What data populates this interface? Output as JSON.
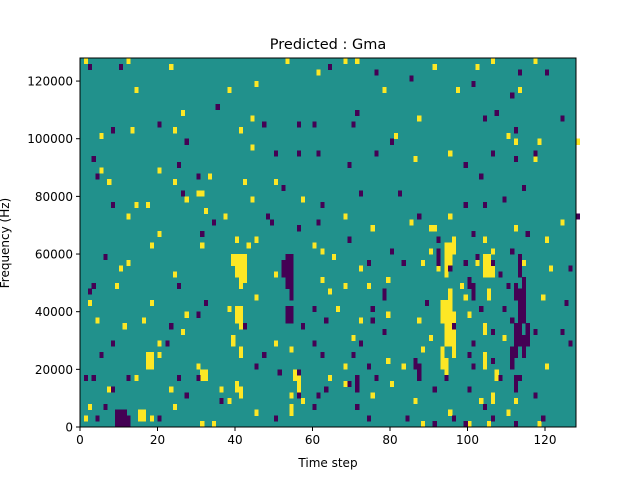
{
  "chart_data": {
    "type": "heatmap",
    "title": "Predicted : Gma",
    "xlabel": "Time step",
    "ylabel": "Frequency (Hz)",
    "xlim": [
      0,
      128
    ],
    "ylim": [
      0,
      128000
    ],
    "x_ticks": [
      0,
      20,
      40,
      60,
      80,
      100,
      120
    ],
    "y_ticks": [
      0,
      20000,
      40000,
      60000,
      80000,
      100000,
      120000
    ],
    "x_tick_labels": [
      "0",
      "20",
      "40",
      "60",
      "80",
      "100",
      "120"
    ],
    "y_tick_labels": [
      "0",
      "20000",
      "40000",
      "60000",
      "80000",
      "100000",
      "120000"
    ],
    "grid": false,
    "colormap": "viridis",
    "colors": {
      "background_mid": "#21918c",
      "high": "#fde725",
      "low": "#440154"
    },
    "n_freq_bins": 64,
    "bin_height_hz": 2000,
    "cells": {
      "high": [
        [
          1,
          63
        ],
        [
          12,
          63
        ],
        [
          53,
          63
        ],
        [
          68,
          63
        ],
        [
          71,
          63
        ],
        [
          106,
          63
        ],
        [
          117,
          63
        ],
        [
          91,
          62
        ],
        [
          102,
          62
        ],
        [
          23,
          62
        ],
        [
          61,
          61
        ],
        [
          45,
          59
        ],
        [
          14,
          58
        ],
        [
          38,
          58
        ],
        [
          78,
          58
        ],
        [
          97,
          58
        ],
        [
          113,
          58
        ],
        [
          26,
          54
        ],
        [
          44,
          53
        ],
        [
          87,
          53
        ],
        [
          24,
          51
        ],
        [
          41,
          51
        ],
        [
          81,
          50
        ],
        [
          110,
          50
        ],
        [
          112,
          49
        ],
        [
          118,
          49
        ],
        [
          128,
          49
        ],
        [
          13,
          51
        ],
        [
          5,
          50
        ],
        [
          44,
          48
        ],
        [
          95,
          47
        ],
        [
          86,
          46
        ],
        [
          117,
          46
        ],
        [
          5,
          44
        ],
        [
          20,
          44
        ],
        [
          33,
          43
        ],
        [
          50,
          42
        ],
        [
          42,
          42
        ],
        [
          7,
          42
        ],
        [
          31,
          40
        ],
        [
          30,
          40
        ],
        [
          24,
          42
        ],
        [
          27,
          39
        ],
        [
          14,
          38
        ],
        [
          17,
          38
        ],
        [
          44,
          39
        ],
        [
          57,
          39
        ],
        [
          37,
          36
        ],
        [
          68,
          36
        ],
        [
          90,
          34
        ],
        [
          91,
          34
        ],
        [
          75,
          34
        ],
        [
          32,
          37
        ],
        [
          12,
          36
        ],
        [
          95,
          36
        ],
        [
          85,
          35
        ],
        [
          112,
          34
        ],
        [
          124,
          35
        ],
        [
          92,
          32
        ],
        [
          104,
          32
        ],
        [
          120,
          32
        ],
        [
          20,
          33
        ],
        [
          45,
          32
        ],
        [
          60,
          31
        ],
        [
          40,
          32
        ],
        [
          43,
          31
        ],
        [
          62,
          30
        ],
        [
          90,
          30
        ],
        [
          106,
          30
        ],
        [
          18,
          31
        ],
        [
          31,
          31
        ],
        [
          53,
          29
        ],
        [
          65,
          29
        ],
        [
          12,
          28
        ],
        [
          41,
          28
        ],
        [
          88,
          28
        ],
        [
          102,
          28
        ],
        [
          114,
          28
        ],
        [
          10,
          27
        ],
        [
          72,
          27
        ],
        [
          92,
          27
        ],
        [
          121,
          27
        ],
        [
          24,
          26
        ],
        [
          50,
          26
        ],
        [
          62,
          25
        ],
        [
          79,
          25
        ],
        [
          9,
          24
        ],
        [
          68,
          24
        ],
        [
          74,
          24
        ],
        [
          98,
          24
        ],
        [
          64,
          23
        ],
        [
          45,
          22
        ],
        [
          99,
          22
        ],
        [
          119,
          22
        ],
        [
          2,
          21
        ],
        [
          18,
          21
        ],
        [
          38,
          20
        ],
        [
          27,
          19
        ],
        [
          66,
          20
        ],
        [
          79,
          19
        ],
        [
          100,
          19
        ],
        [
          4,
          18
        ],
        [
          16,
          18
        ],
        [
          72,
          18
        ],
        [
          87,
          18
        ],
        [
          11,
          17
        ],
        [
          26,
          16
        ],
        [
          70,
          15
        ],
        [
          90,
          15
        ],
        [
          109,
          15
        ],
        [
          20,
          14
        ],
        [
          50,
          14
        ],
        [
          54,
          13
        ],
        [
          88,
          13
        ],
        [
          79,
          11
        ],
        [
          104,
          11
        ],
        [
          68,
          10
        ],
        [
          83,
          10
        ],
        [
          120,
          10
        ],
        [
          32,
          9
        ],
        [
          14,
          8
        ],
        [
          64,
          8
        ],
        [
          68,
          7
        ],
        [
          80,
          7
        ],
        [
          7,
          6
        ],
        [
          23,
          6
        ],
        [
          36,
          6
        ],
        [
          54,
          5
        ],
        [
          75,
          5
        ],
        [
          57,
          4
        ],
        [
          38,
          4
        ],
        [
          86,
          4
        ],
        [
          103,
          4
        ],
        [
          112,
          4
        ],
        [
          110,
          2
        ],
        [
          2,
          3
        ],
        [
          45,
          2
        ],
        [
          24,
          3
        ],
        [
          95,
          2
        ],
        [
          1,
          1
        ],
        [
          18,
          1
        ],
        [
          31,
          0
        ],
        [
          34,
          0
        ],
        [
          88,
          0
        ],
        [
          100,
          0
        ],
        [
          105,
          0
        ],
        [
          118,
          0
        ]
      ],
      "high_blocks": [
        [
          40,
          26,
          1,
          4
        ],
        [
          41,
          24,
          1,
          6
        ],
        [
          42,
          25,
          1,
          5
        ],
        [
          39,
          28,
          1,
          2
        ],
        [
          40,
          18,
          1,
          3
        ],
        [
          41,
          17,
          1,
          4
        ],
        [
          39,
          14,
          1,
          2
        ],
        [
          41,
          12,
          1,
          2
        ],
        [
          40,
          6,
          1,
          2
        ],
        [
          41,
          5,
          1,
          2
        ],
        [
          93,
          18,
          1,
          4
        ],
        [
          94,
          14,
          1,
          8
        ],
        [
          95,
          14,
          1,
          10
        ],
        [
          96,
          12,
          1,
          8
        ],
        [
          94,
          26,
          1,
          6
        ],
        [
          95,
          28,
          1,
          4
        ],
        [
          93,
          10,
          1,
          4
        ],
        [
          94,
          8,
          1,
          4
        ],
        [
          96,
          30,
          1,
          3
        ],
        [
          104,
          26,
          1,
          4
        ],
        [
          105,
          26,
          1,
          4
        ],
        [
          106,
          26,
          1,
          3
        ],
        [
          105,
          22,
          1,
          2
        ],
        [
          104,
          16,
          1,
          2
        ],
        [
          104,
          10,
          1,
          3
        ],
        [
          107,
          8,
          1,
          2
        ],
        [
          106,
          4,
          1,
          2
        ],
        [
          55,
          8,
          1,
          2
        ],
        [
          56,
          6,
          1,
          4
        ],
        [
          54,
          2,
          1,
          2
        ],
        [
          17,
          10,
          1,
          3
        ],
        [
          18,
          10,
          1,
          3
        ],
        [
          20,
          12,
          1,
          1
        ],
        [
          15,
          1,
          1,
          2
        ],
        [
          16,
          1,
          1,
          2
        ],
        [
          31,
          8,
          1,
          2
        ],
        [
          32,
          8,
          1,
          2
        ],
        [
          30,
          10,
          1,
          1
        ],
        [
          40,
          0,
          0,
          0
        ]
      ],
      "low": [
        [
          2,
          62
        ],
        [
          10,
          62
        ],
        [
          64,
          62
        ],
        [
          76,
          61
        ],
        [
          113,
          61
        ],
        [
          120,
          61
        ],
        [
          85,
          60
        ],
        [
          101,
          59
        ],
        [
          111,
          57
        ],
        [
          35,
          55
        ],
        [
          71,
          54
        ],
        [
          107,
          54
        ],
        [
          124,
          53
        ],
        [
          112,
          51
        ],
        [
          27,
          49
        ],
        [
          80,
          49
        ],
        [
          56,
          52
        ],
        [
          20,
          52
        ],
        [
          47,
          52
        ],
        [
          60,
          52
        ],
        [
          70,
          52
        ],
        [
          104,
          53
        ],
        [
          8,
          51
        ],
        [
          25,
          45
        ],
        [
          69,
          45
        ],
        [
          50,
          47
        ],
        [
          56,
          47
        ],
        [
          106,
          47
        ],
        [
          117,
          47
        ],
        [
          3,
          46
        ],
        [
          76,
          47
        ],
        [
          61,
          47
        ],
        [
          112,
          46
        ],
        [
          99,
          45
        ],
        [
          103,
          43
        ],
        [
          4,
          43
        ],
        [
          30,
          43
        ],
        [
          52,
          41
        ],
        [
          72,
          40
        ],
        [
          82,
          40
        ],
        [
          114,
          41
        ],
        [
          26,
          40
        ],
        [
          62,
          38
        ],
        [
          104,
          38
        ],
        [
          8,
          38
        ],
        [
          99,
          38
        ],
        [
          109,
          39
        ],
        [
          48,
          36
        ],
        [
          49,
          35
        ],
        [
          87,
          36
        ],
        [
          128,
          36
        ],
        [
          34,
          35
        ],
        [
          61,
          35
        ],
        [
          56,
          34
        ],
        [
          101,
          33
        ],
        [
          115,
          33
        ],
        [
          31,
          33
        ],
        [
          92,
          32
        ],
        [
          69,
          32
        ],
        [
          80,
          30
        ],
        [
          111,
          30
        ],
        [
          6,
          29
        ],
        [
          102,
          29
        ],
        [
          99,
          28
        ],
        [
          74,
          28
        ],
        [
          106,
          28
        ],
        [
          95,
          27
        ],
        [
          83,
          28
        ],
        [
          126,
          27
        ],
        [
          108,
          26
        ],
        [
          3,
          24
        ],
        [
          110,
          24
        ],
        [
          25,
          24
        ],
        [
          113,
          23
        ],
        [
          2,
          23
        ],
        [
          54,
          22
        ],
        [
          75,
          20
        ],
        [
          89,
          21
        ],
        [
          109,
          20
        ],
        [
          103,
          20
        ],
        [
          60,
          20
        ],
        [
          32,
          21
        ],
        [
          125,
          21
        ],
        [
          30,
          19
        ],
        [
          63,
          18
        ],
        [
          75,
          18
        ],
        [
          111,
          18
        ],
        [
          42,
          17
        ],
        [
          57,
          17
        ],
        [
          23,
          17
        ],
        [
          96,
          17
        ],
        [
          78,
          16
        ],
        [
          106,
          16
        ],
        [
          117,
          16
        ],
        [
          124,
          16
        ],
        [
          8,
          14
        ],
        [
          22,
          14
        ],
        [
          60,
          14
        ],
        [
          72,
          14
        ],
        [
          101,
          14
        ],
        [
          126,
          14
        ],
        [
          5,
          12
        ],
        [
          47,
          12
        ],
        [
          62,
          12
        ],
        [
          70,
          12
        ],
        [
          100,
          12
        ],
        [
          106,
          11
        ],
        [
          45,
          10
        ],
        [
          74,
          10
        ],
        [
          101,
          10
        ],
        [
          1,
          8
        ],
        [
          3,
          8
        ],
        [
          12,
          8
        ],
        [
          25,
          8
        ],
        [
          30,
          8
        ],
        [
          51,
          9
        ],
        [
          56,
          9
        ],
        [
          76,
          8
        ],
        [
          113,
          8
        ],
        [
          108,
          8
        ],
        [
          69,
          7
        ],
        [
          94,
          8
        ],
        [
          63,
          6
        ],
        [
          8,
          6
        ],
        [
          27,
          5
        ],
        [
          56,
          5
        ],
        [
          61,
          5
        ],
        [
          117,
          5
        ],
        [
          91,
          6
        ],
        [
          100,
          6
        ],
        [
          36,
          4
        ],
        [
          6,
          3
        ],
        [
          60,
          3
        ],
        [
          71,
          3
        ],
        [
          104,
          3
        ],
        [
          9,
          2
        ],
        [
          4,
          1
        ],
        [
          20,
          1
        ],
        [
          50,
          1
        ],
        [
          74,
          1
        ],
        [
          84,
          1
        ],
        [
          96,
          1
        ],
        [
          106,
          1
        ],
        [
          119,
          1
        ],
        [
          91,
          0
        ],
        [
          99,
          0
        ],
        [
          112,
          0
        ]
      ],
      "low_blocks": [
        [
          53,
          24,
          1,
          6
        ],
        [
          54,
          22,
          1,
          8
        ],
        [
          52,
          26,
          1,
          3
        ],
        [
          53,
          18,
          1,
          3
        ],
        [
          54,
          18,
          1,
          3
        ],
        [
          112,
          12,
          1,
          6
        ],
        [
          113,
          14,
          1,
          10
        ],
        [
          114,
          18,
          1,
          8
        ],
        [
          113,
          26,
          1,
          4
        ],
        [
          112,
          22,
          1,
          3
        ],
        [
          111,
          10,
          1,
          4
        ],
        [
          112,
          6,
          1,
          3
        ],
        [
          114,
          12,
          1,
          4
        ],
        [
          115,
          14,
          1,
          4
        ],
        [
          92,
          28,
          1,
          3
        ],
        [
          101,
          22,
          1,
          3
        ],
        [
          100,
          24,
          1,
          2
        ],
        [
          9,
          0,
          1,
          2
        ],
        [
          10,
          0,
          1,
          3
        ],
        [
          11,
          0,
          1,
          3
        ],
        [
          12,
          0,
          1,
          2
        ],
        [
          86,
          10,
          1,
          2
        ],
        [
          87,
          8,
          1,
          3
        ],
        [
          78,
          22,
          1,
          2
        ],
        [
          71,
          6,
          1,
          3
        ]
      ]
    }
  }
}
